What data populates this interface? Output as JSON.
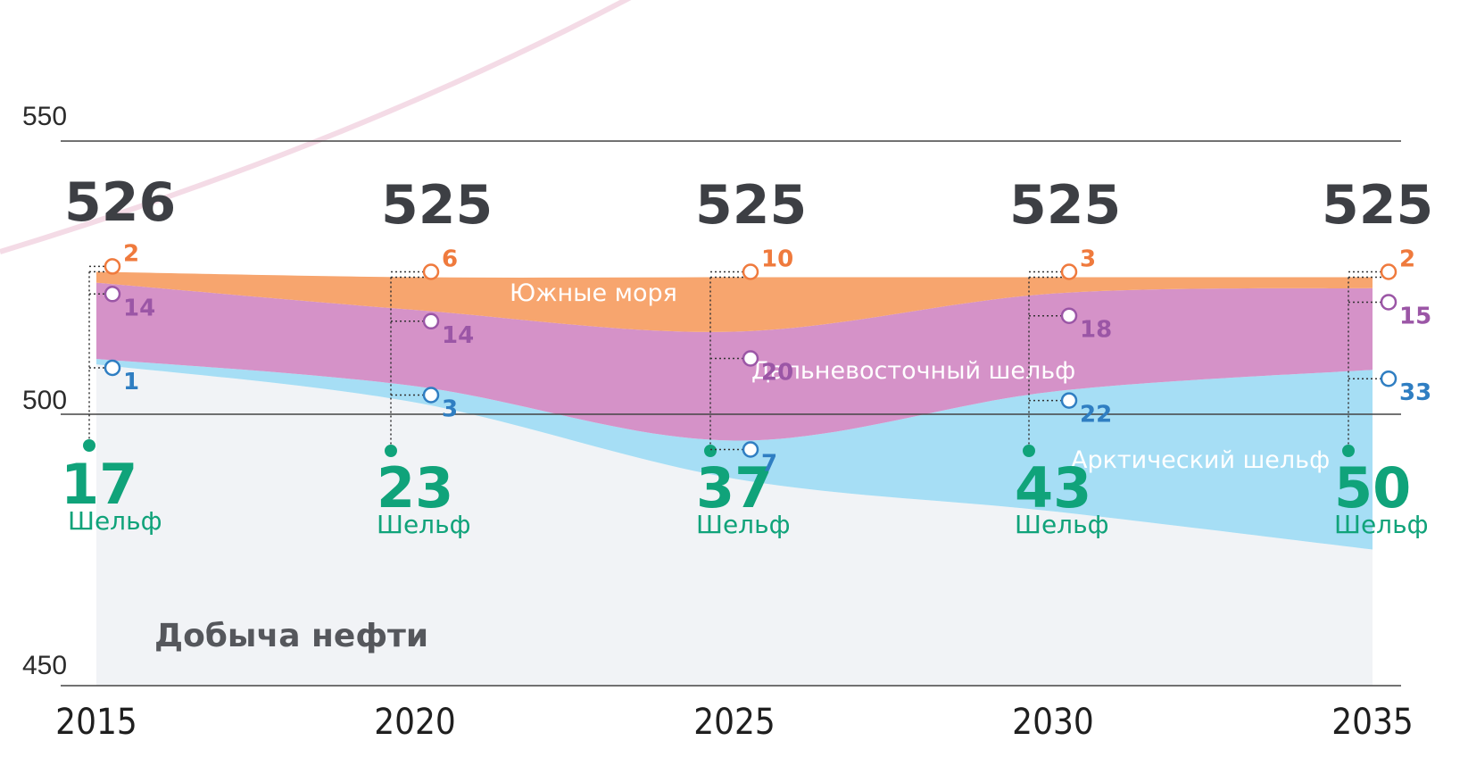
{
  "chart_data": {
    "type": "area",
    "x": [
      "2015",
      "2020",
      "2025",
      "2030",
      "2035"
    ],
    "ylim": [
      450,
      550
    ],
    "yticks": [
      "550",
      "500",
      "450"
    ],
    "totals": [
      "526",
      "525",
      "525",
      "525",
      "525"
    ],
    "shelf_values": [
      "17",
      "23",
      "37",
      "43",
      "50"
    ],
    "shelf_label": "Шельф",
    "base_label": "Добыча нефти",
    "series": [
      {
        "name": "Южные моря",
        "color": "#f7a56e",
        "label_color": "#ef7a3d",
        "values": [
          2,
          6,
          10,
          3,
          2
        ]
      },
      {
        "name": "Дальневосточный шельф",
        "color": "#d592c8",
        "label_color": "#9b56a6",
        "values": [
          14,
          14,
          20,
          18,
          15
        ]
      },
      {
        "name": "Арктический шельф",
        "color": "#a6def5",
        "label_color": "#2f7ec2",
        "values": [
          1,
          3,
          7,
          22,
          33
        ]
      }
    ],
    "base_color": "#f1f3f6",
    "grid": true
  }
}
